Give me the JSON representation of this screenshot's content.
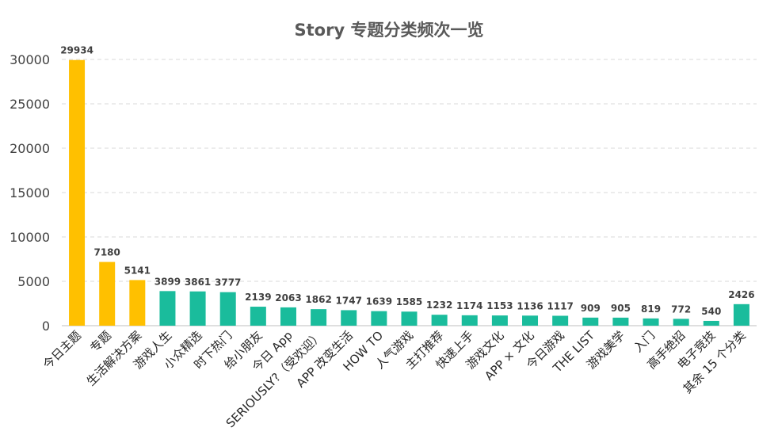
{
  "chart_data": {
    "type": "bar",
    "title": "Story 专题分类频次一览",
    "xlabel": "",
    "ylabel": "",
    "ylim": [
      0,
      30000
    ],
    "yticks": [
      0,
      5000,
      10000,
      15000,
      20000,
      25000,
      30000
    ],
    "grid": true,
    "legend": "none",
    "colors": {
      "highlight": "#FFC000",
      "normal": "#1ABC9C",
      "grid": "#D9D9D9",
      "axis": "#BFBFBF"
    },
    "categories": [
      "今日主题",
      "专题",
      "生活解决方案",
      "游戏人生",
      "小众精选",
      "时下热门",
      "给小朋友",
      "今日 App",
      "SERIOUSLY?（受欢迎）",
      "APP 改变生活",
      "HOW TO",
      "人气游戏",
      "主打推荐",
      "快速上手",
      "游戏文化",
      "APP × 文化",
      "今日游戏",
      "THE LIST",
      "游戏美学",
      "入门",
      "高手绝招",
      "电子竞技",
      "其余 15 个分类"
    ],
    "values": [
      29934,
      7180,
      5141,
      3899,
      3861,
      3777,
      2139,
      2063,
      1862,
      1747,
      1639,
      1585,
      1232,
      1174,
      1153,
      1136,
      1117,
      909,
      905,
      819,
      772,
      540,
      2426
    ],
    "highlight_count": 3
  }
}
